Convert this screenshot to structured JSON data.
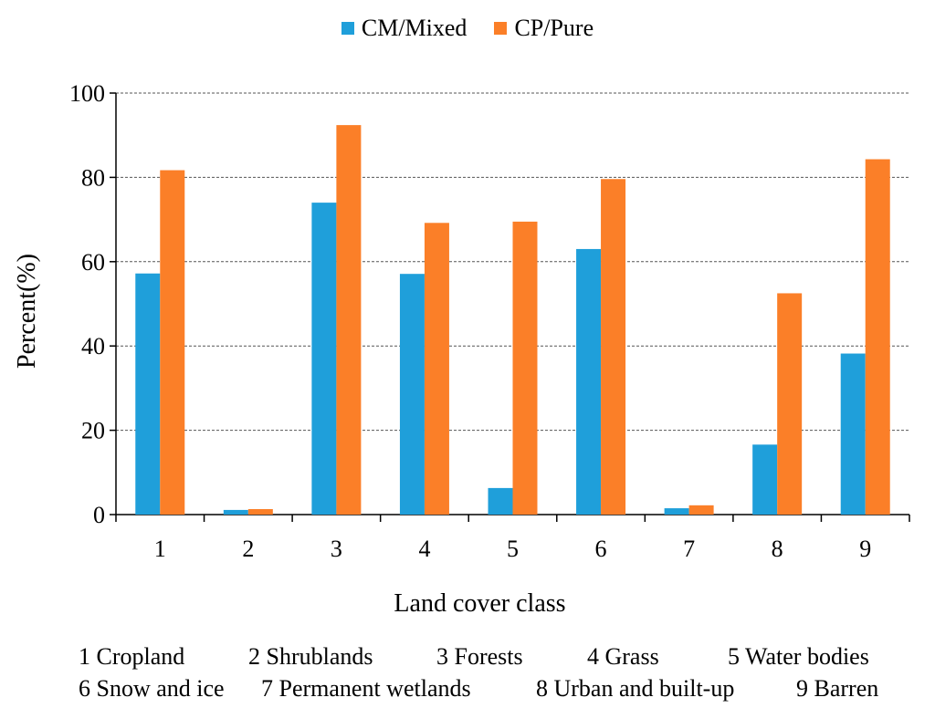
{
  "chart_data": {
    "type": "bar",
    "categories": [
      "1",
      "2",
      "3",
      "4",
      "5",
      "6",
      "7",
      "8",
      "9"
    ],
    "series": [
      {
        "name": "CM/Mixed",
        "color": "#1f9fda",
        "values": [
          57.2,
          1.1,
          74.0,
          57.1,
          6.3,
          63.0,
          1.5,
          16.6,
          38.2
        ]
      },
      {
        "name": "CP/Pure",
        "color": "#fb7f28",
        "values": [
          81.7,
          1.3,
          92.4,
          69.2,
          69.5,
          79.6,
          2.2,
          52.5,
          84.3
        ]
      }
    ],
    "title": "",
    "xlabel": "Land cover class",
    "ylabel": "Percent(%)",
    "ylim": [
      0,
      100
    ],
    "yticks": [
      0,
      20,
      40,
      60,
      80,
      100
    ],
    "grid": true,
    "legend_position": "top-center"
  },
  "caption": {
    "row1": [
      "1 Cropland",
      "2 Shrublands",
      "3 Forests",
      "4 Grass",
      "5 Water bodies"
    ],
    "row2": [
      "6 Snow and ice",
      "7 Permanent wetlands",
      "8 Urban and built-up",
      "9 Barren"
    ]
  }
}
